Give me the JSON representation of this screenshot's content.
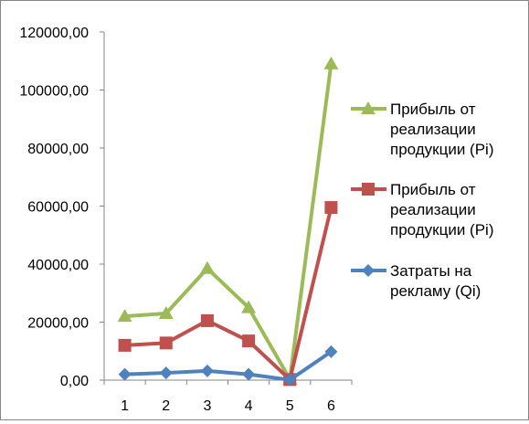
{
  "chart_data": {
    "type": "line",
    "title": "",
    "xlabel": "",
    "ylabel": "",
    "categories": [
      "1",
      "2",
      "3",
      "4",
      "5",
      "6"
    ],
    "ylim": [
      0,
      120000
    ],
    "y_ticks": [
      0,
      20000,
      40000,
      60000,
      80000,
      100000,
      120000
    ],
    "y_tick_labels": [
      "0,00",
      "20000,00",
      "40000,00",
      "60000,00",
      "80000,00",
      "100000,00",
      "120000,00"
    ],
    "grid": false,
    "legend_position": "right",
    "series": [
      {
        "name": "Прибыль от реализации продукции (Pi)",
        "legend_lines": [
          "Прибыль от",
          "реализации",
          "продукции (Pi)"
        ],
        "color": "#9bbb59",
        "marker": "triangle",
        "values": [
          22000,
          23000,
          38500,
          25000,
          300,
          109000
        ]
      },
      {
        "name": "Прибыль от реализации продукции (Pi)",
        "legend_lines": [
          "Прибыль от",
          "реализации",
          "продукции (Pi)"
        ],
        "color": "#c0504d",
        "marker": "square",
        "values": [
          12000,
          12800,
          20500,
          13500,
          200,
          59500
        ]
      },
      {
        "name": "Затраты на рекламу (Qi)",
        "legend_lines": [
          "Затраты на",
          "рекламу (Qi)"
        ],
        "color": "#4f81bd",
        "marker": "diamond",
        "values": [
          2000,
          2500,
          3200,
          2000,
          100,
          9800
        ]
      }
    ]
  }
}
